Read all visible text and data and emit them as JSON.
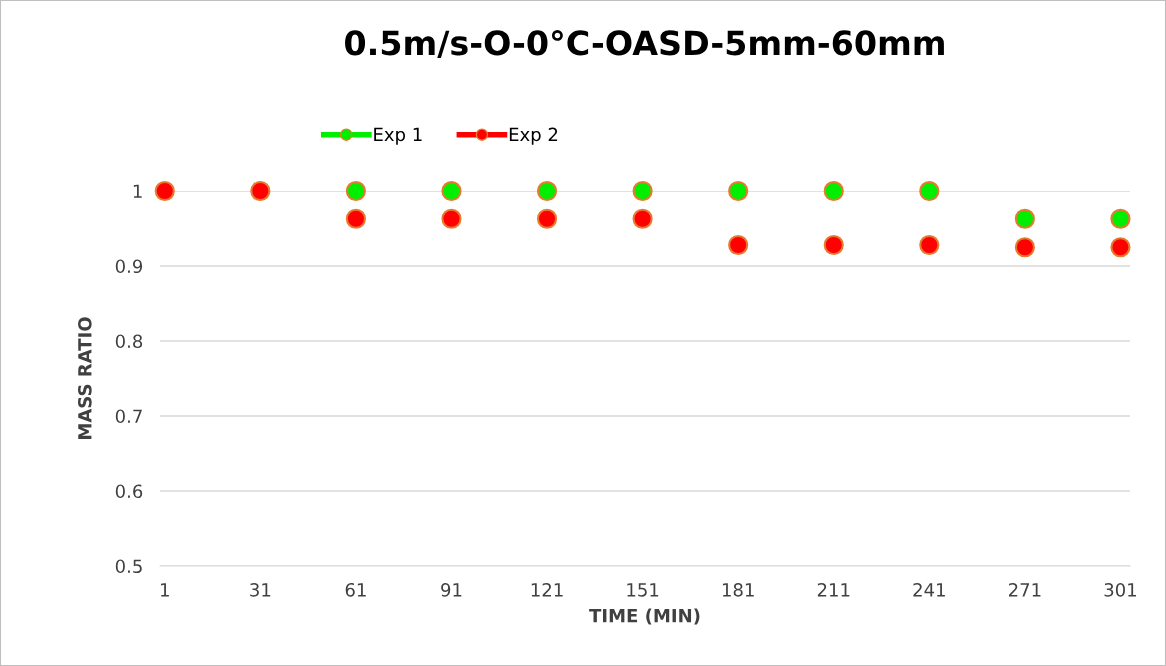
{
  "chart_data": {
    "type": "scatter",
    "title": "0.5m/s-O-0°C-OASD-5mm-60mm",
    "xlabel": "TIME (MIN)",
    "ylabel": "MASS RATIO",
    "categories": [
      "1",
      "31",
      "61",
      "91",
      "121",
      "151",
      "181",
      "211",
      "241",
      "271",
      "301"
    ],
    "series": [
      {
        "name": "Exp 1",
        "color": "#00ee00",
        "values": [
          null,
          null,
          1,
          1,
          1,
          1,
          1,
          1,
          1,
          0.963,
          0.963
        ]
      },
      {
        "name": "Exp 2",
        "color": "#ff0000",
        "values": [
          1,
          1,
          0.963,
          0.963,
          0.963,
          0.963,
          0.928,
          0.928,
          0.928,
          0.925,
          0.925
        ]
      }
    ],
    "ylim": [
      0.5,
      1
    ],
    "yticks": [
      0.5,
      0.6,
      0.7,
      0.8,
      0.9,
      1
    ],
    "grid": "y",
    "legend": "top",
    "marker": "circle"
  }
}
